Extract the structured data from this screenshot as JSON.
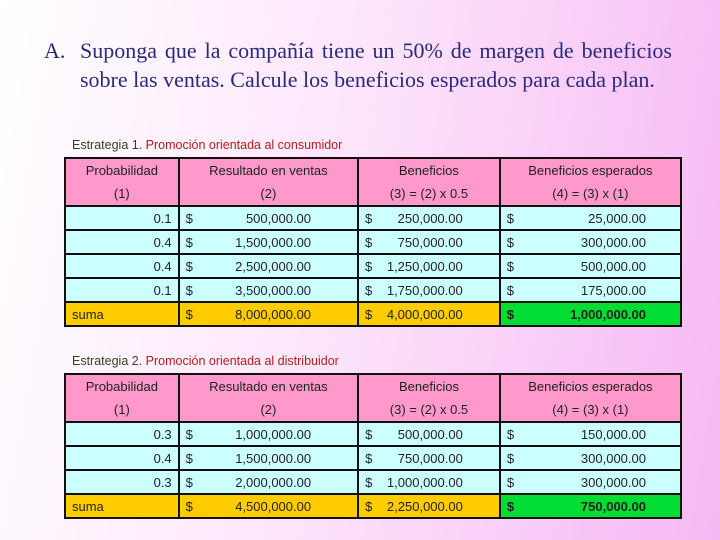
{
  "question": {
    "label": "A.",
    "text": "Suponga que la compañía tiene un 50% de margen de beneficios sobre las ventas. Calcule los beneficios esperados para cada plan."
  },
  "tables": [
    {
      "caption_prefix": "Estrategia 1.",
      "caption": " Promoción orientada al consumidor",
      "headers": [
        "Probabilidad",
        "Resultado en ventas",
        "Beneficios",
        "Beneficios esperados"
      ],
      "subheaders": [
        "(1)",
        "(2)",
        "(3) = (2) x 0.5",
        "(4) = (3) x (1)"
      ],
      "rows": [
        [
          "0.1",
          "500,000.00",
          "250,000.00",
          "25,000.00"
        ],
        [
          "0.4",
          "1,500,000.00",
          "750,000.00",
          "300,000.00"
        ],
        [
          "0.4",
          "2,500,000.00",
          "1,250,000.00",
          "500,000.00"
        ],
        [
          "0.1",
          "3,500,000.00",
          "1,750,000.00",
          "175,000.00"
        ]
      ],
      "sum": [
        "suma",
        "8,000,000.00",
        "4,000,000.00",
        "1,000,000.00"
      ]
    },
    {
      "caption_prefix": "Estrategia 2.",
      "caption": " Promoción orientada al distribuidor",
      "headers": [
        "Probabilidad",
        "Resultado en ventas",
        "Beneficios",
        "Beneficios esperados"
      ],
      "subheaders": [
        "(1)",
        "(2)",
        "(3) = (2) x 0.5",
        "(4) = (3) x (1)"
      ],
      "rows": [
        [
          "0.3",
          "1,000,000.00",
          "500,000.00",
          "150,000.00"
        ],
        [
          "0.4",
          "1,500,000.00",
          "750,000.00",
          "300,000.00"
        ],
        [
          "0.3",
          "2,000,000.00",
          "1,000,000.00",
          "300,000.00"
        ]
      ],
      "sum": [
        "suma",
        "4,500,000.00",
        "2,250,000.00",
        "750,000.00"
      ]
    }
  ],
  "currency": "$",
  "colors": {
    "header": "#ff99cc",
    "data": "#ccffff",
    "sum": "#ffcc00",
    "total": "#00dd33"
  }
}
